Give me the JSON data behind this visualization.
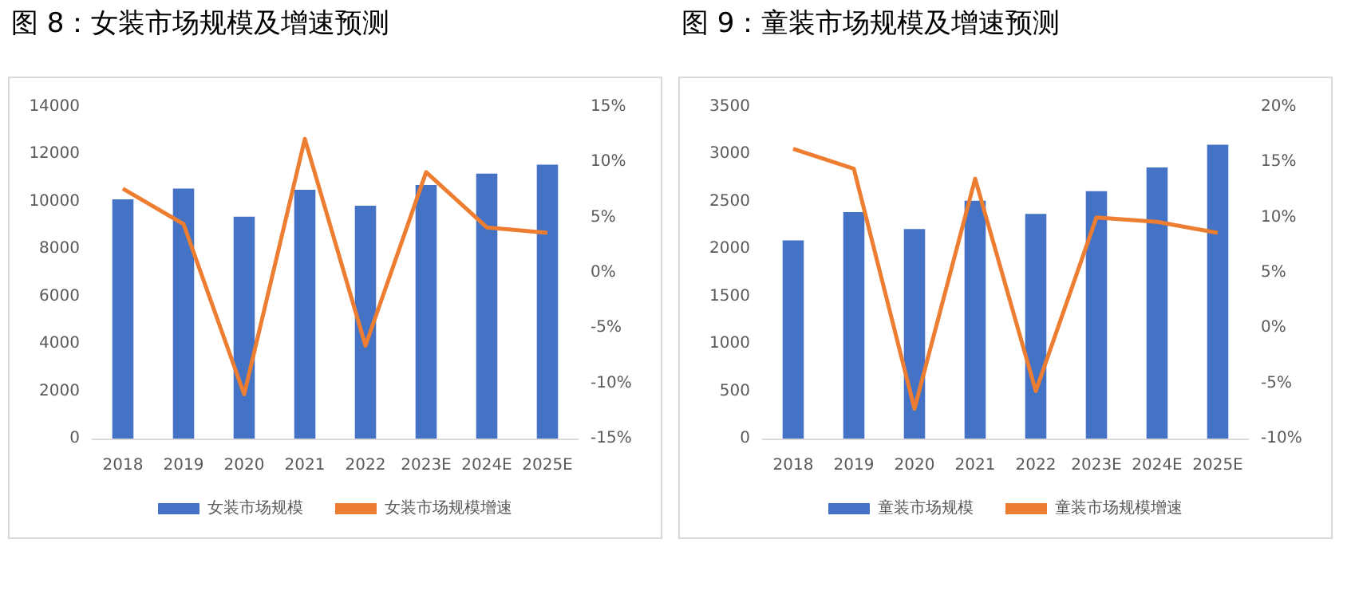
{
  "chart_data": [
    {
      "type": "bar",
      "title": "图 8：女装市场规模及增速预测",
      "categories": [
        "2018",
        "2019",
        "2020",
        "2021",
        "2022",
        "2023E",
        "2024E",
        "2025E"
      ],
      "series": [
        {
          "name": "女装市场规模",
          "color": "#4472c4",
          "values": [
            10100,
            10550,
            9360,
            10500,
            9830,
            10700,
            11180,
            11560
          ]
        },
        {
          "name": "女装市场规模增速",
          "type": "line",
          "axis": "y2",
          "color": "#ed7d31",
          "values": [
            7.6,
            4.4,
            -11.0,
            12.1,
            -6.6,
            9.1,
            4.1,
            3.6
          ]
        }
      ],
      "ylim": [
        0,
        14000
      ],
      "yticks": [
        0,
        2000,
        4000,
        6000,
        8000,
        10000,
        12000,
        14000
      ],
      "y2lim": [
        -15,
        15
      ],
      "y2ticks": [
        {
          "value": -15,
          "label": "-15%"
        },
        {
          "value": -10,
          "label": "-10%"
        },
        {
          "value": -5,
          "label": "-5%"
        },
        {
          "value": 0,
          "label": "0%"
        },
        {
          "value": 5,
          "label": "5%"
        },
        {
          "value": 10,
          "label": "10%"
        },
        {
          "value": 15,
          "label": "15%"
        }
      ],
      "grid": false,
      "legend": "bottom",
      "marker": "none"
    },
    {
      "type": "bar",
      "title": "图 9：童装市场规模及增速预测",
      "categories": [
        "2018",
        "2019",
        "2020",
        "2021",
        "2022",
        "2023E",
        "2024E",
        "2025E"
      ],
      "series": [
        {
          "name": "童装市场规模",
          "color": "#4472c4",
          "values": [
            2090,
            2390,
            2210,
            2510,
            2370,
            2610,
            2860,
            3100
          ]
        },
        {
          "name": "童装市场规模增速",
          "type": "line",
          "axis": "y2",
          "color": "#ed7d31",
          "values": [
            16.2,
            14.4,
            -7.3,
            13.5,
            -5.7,
            10.0,
            9.6,
            8.6
          ]
        }
      ],
      "ylim": [
        0,
        3500
      ],
      "yticks": [
        0,
        500,
        1000,
        1500,
        2000,
        2500,
        3000,
        3500
      ],
      "y2lim": [
        -10,
        20
      ],
      "y2ticks": [
        {
          "value": -10,
          "label": "-10%"
        },
        {
          "value": -5,
          "label": "-5%"
        },
        {
          "value": 0,
          "label": "0%"
        },
        {
          "value": 5,
          "label": "5%"
        },
        {
          "value": 10,
          "label": "10%"
        },
        {
          "value": 15,
          "label": "15%"
        },
        {
          "value": 20,
          "label": "20%"
        }
      ],
      "grid": false,
      "legend": "bottom",
      "marker": "none"
    }
  ]
}
